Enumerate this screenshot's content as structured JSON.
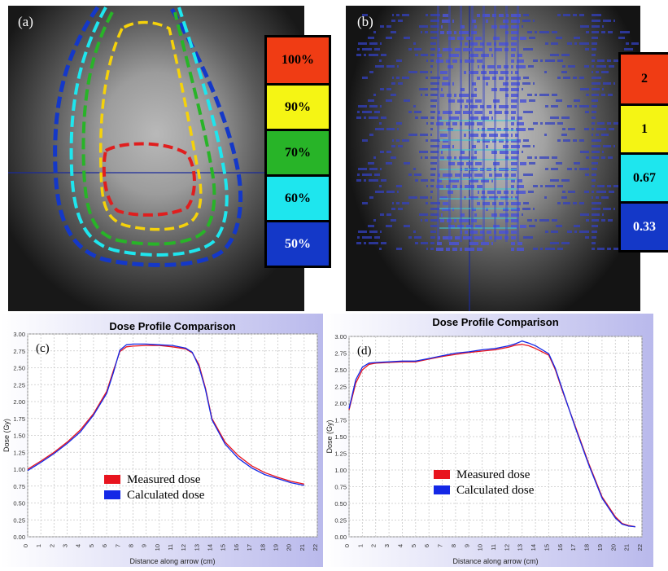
{
  "panels": {
    "a": {
      "label": "(a)",
      "legend": [
        {
          "text": "100%",
          "color": "#f03c14"
        },
        {
          "text": "90%",
          "color": "#f5f514"
        },
        {
          "text": "70%",
          "color": "#28b428"
        },
        {
          "text": "60%",
          "color": "#1ee6ee"
        },
        {
          "text": "50%",
          "color": "#1438c8"
        }
      ]
    },
    "b": {
      "label": "(b)",
      "legend": [
        {
          "text": "2",
          "color": "#f03c14"
        },
        {
          "text": "1",
          "color": "#f5f514"
        },
        {
          "text": "0.67",
          "color": "#1ee6ee"
        },
        {
          "text": "0.33",
          "color": "#1438c8"
        }
      ]
    }
  },
  "chart_data": [
    {
      "type": "line",
      "panel_label": "(c)",
      "title": "Dose Profile Comparison",
      "xlabel": "Distance along arrow (cm)",
      "ylabel": "Dose (Gy)",
      "xlim": [
        0,
        22
      ],
      "ylim": [
        0,
        3.0
      ],
      "xticks": [
        "0",
        "1",
        "2",
        "3",
        "4",
        "5",
        "6",
        "7",
        "8",
        "9",
        "10",
        "11",
        "12",
        "13",
        "14",
        "15",
        "16",
        "17",
        "18",
        "19",
        "20",
        "21",
        "22"
      ],
      "yticks": [
        "0.00",
        "0.25",
        "0.50",
        "0.75",
        "1.00",
        "1.25",
        "1.50",
        "1.75",
        "2.00",
        "2.25",
        "2.50",
        "2.75",
        "3.00"
      ],
      "grid": true,
      "legend_position": "bottom-center",
      "series": [
        {
          "name": "Measured dose",
          "color": "#e8141e",
          "x": [
            0,
            1,
            2,
            3,
            4,
            5,
            6,
            6.5,
            7,
            7.5,
            8,
            9,
            10,
            11,
            12,
            12.5,
            13,
            13.5,
            14,
            15,
            16,
            17,
            18,
            19,
            20,
            21
          ],
          "y": [
            1.0,
            1.12,
            1.25,
            1.4,
            1.58,
            1.82,
            2.15,
            2.45,
            2.74,
            2.81,
            2.82,
            2.83,
            2.83,
            2.81,
            2.78,
            2.72,
            2.55,
            2.2,
            1.75,
            1.4,
            1.2,
            1.05,
            0.95,
            0.88,
            0.82,
            0.78
          ]
        },
        {
          "name": "Calculated dose",
          "color": "#1428e6",
          "x": [
            0,
            1,
            2,
            3,
            4,
            5,
            6,
            6.5,
            7,
            7.5,
            8,
            9,
            10,
            11,
            12,
            12.5,
            13,
            13.5,
            14,
            15,
            16,
            17,
            18,
            19,
            20,
            21
          ],
          "y": [
            0.98,
            1.1,
            1.23,
            1.38,
            1.55,
            1.8,
            2.12,
            2.42,
            2.76,
            2.84,
            2.85,
            2.85,
            2.84,
            2.83,
            2.79,
            2.73,
            2.52,
            2.18,
            1.73,
            1.37,
            1.16,
            1.02,
            0.92,
            0.86,
            0.8,
            0.76
          ]
        }
      ]
    },
    {
      "type": "line",
      "panel_label": "(d)",
      "title": "Dose Profile Comparison",
      "xlabel": "Distance along arrow (cm)",
      "ylabel": "Dose (Gy)",
      "xlim": [
        0,
        22
      ],
      "ylim": [
        0,
        3.0
      ],
      "xticks": [
        "0",
        "1",
        "2",
        "3",
        "4",
        "5",
        "6",
        "7",
        "8",
        "9",
        "10",
        "11",
        "12",
        "13",
        "14",
        "15",
        "16",
        "17",
        "18",
        "19",
        "20",
        "21",
        "22"
      ],
      "yticks": [
        "0.00",
        "0.25",
        "0.50",
        "0.75",
        "1.00",
        "1.25",
        "1.50",
        "1.75",
        "2.00",
        "2.25",
        "2.50",
        "2.75",
        "3.00"
      ],
      "grid": true,
      "legend_position": "bottom-center",
      "series": [
        {
          "name": "Measured dose",
          "color": "#e8141e",
          "x": [
            0,
            0.5,
            1,
            1.5,
            2,
            3,
            4,
            5,
            6,
            7,
            8,
            9,
            10,
            11,
            12,
            12.5,
            13,
            13.5,
            14,
            15,
            15.5,
            16,
            17,
            18,
            19,
            20,
            20.5,
            21,
            21.5
          ],
          "y": [
            1.9,
            2.3,
            2.5,
            2.58,
            2.6,
            2.61,
            2.62,
            2.62,
            2.66,
            2.7,
            2.73,
            2.76,
            2.78,
            2.8,
            2.84,
            2.87,
            2.88,
            2.86,
            2.82,
            2.72,
            2.5,
            2.2,
            1.65,
            1.1,
            0.6,
            0.3,
            0.2,
            0.17,
            0.15
          ]
        },
        {
          "name": "Calculated dose",
          "color": "#1428e6",
          "x": [
            0,
            0.5,
            1,
            1.5,
            2,
            3,
            4,
            5,
            6,
            7,
            8,
            9,
            10,
            11,
            12,
            12.5,
            13,
            13.5,
            14,
            15,
            15.5,
            16,
            17,
            18,
            19,
            20,
            20.5,
            21,
            21.5
          ],
          "y": [
            1.92,
            2.35,
            2.54,
            2.6,
            2.61,
            2.62,
            2.63,
            2.63,
            2.67,
            2.71,
            2.75,
            2.77,
            2.8,
            2.82,
            2.86,
            2.89,
            2.93,
            2.9,
            2.86,
            2.74,
            2.52,
            2.22,
            1.63,
            1.08,
            0.58,
            0.28,
            0.19,
            0.16,
            0.15
          ]
        }
      ]
    }
  ]
}
